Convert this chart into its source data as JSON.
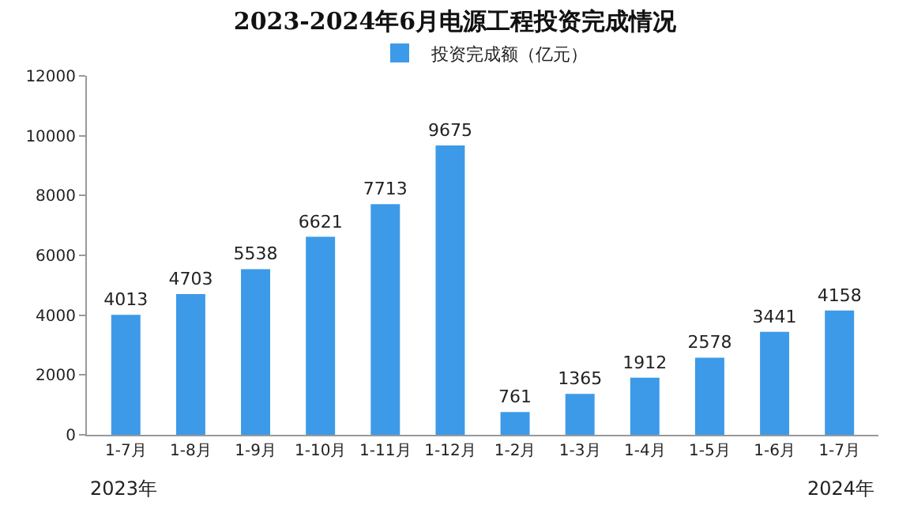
{
  "chart_data": {
    "type": "bar",
    "title": "2023-2024年6月电源工程投资完成情况",
    "categories": [
      "1-7月",
      "1-8月",
      "1-9月",
      "1-10月",
      "1-11月",
      "1-12月",
      "1-2月",
      "1-3月",
      "1-4月",
      "1-5月",
      "1-6月",
      "1-7月"
    ],
    "series": [
      {
        "name": "投资完成额（亿元）",
        "color": "#3d9ae8",
        "values": [
          4013,
          4703,
          5538,
          6621,
          7713,
          9675,
          761,
          1365,
          1912,
          2578,
          3441,
          4158
        ]
      }
    ],
    "ylim": [
      0,
      12000
    ],
    "yticks": [
      0,
      2000,
      4000,
      6000,
      8000,
      10000,
      12000
    ],
    "grid": false,
    "legend": "top",
    "data_labels": true,
    "annotations": [
      "2023年",
      "2024年"
    ]
  }
}
